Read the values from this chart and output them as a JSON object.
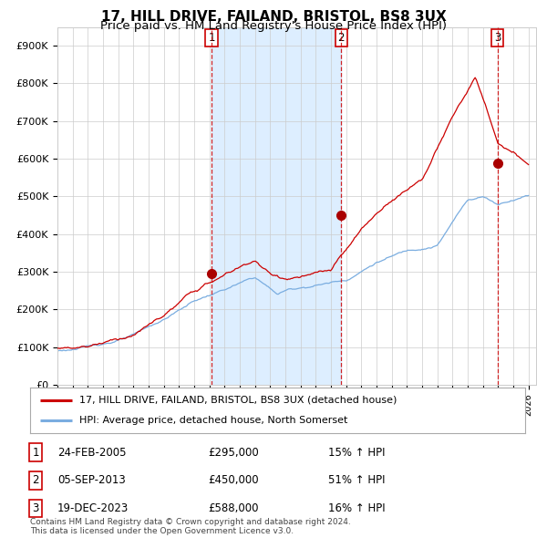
{
  "title": "17, HILL DRIVE, FAILAND, BRISTOL, BS8 3UX",
  "subtitle": "Price paid vs. HM Land Registry's House Price Index (HPI)",
  "ylabel_ticks": [
    "£0",
    "£100K",
    "£200K",
    "£300K",
    "£400K",
    "£500K",
    "£600K",
    "£700K",
    "£800K",
    "£900K"
  ],
  "ytick_values": [
    0,
    100000,
    200000,
    300000,
    400000,
    500000,
    600000,
    700000,
    800000,
    900000
  ],
  "ylim": [
    0,
    950000
  ],
  "xlim_start": 1995.0,
  "xlim_end": 2026.5,
  "sale_dates_num": [
    2005.14,
    2013.68,
    2023.96
  ],
  "sale_prices": [
    295000,
    450000,
    588000
  ],
  "sale_labels": [
    "1",
    "2",
    "3"
  ],
  "vline_color": "#cc0000",
  "sale_dot_color": "#aa0000",
  "hpi_line_color": "#7aade0",
  "price_line_color": "#cc0000",
  "shade_color": "#ddeeff",
  "background_color": "#ffffff",
  "grid_color": "#cccccc",
  "legend_entries": [
    "17, HILL DRIVE, FAILAND, BRISTOL, BS8 3UX (detached house)",
    "HPI: Average price, detached house, North Somerset"
  ],
  "table_rows": [
    [
      "1",
      "24-FEB-2005",
      "£295,000",
      "15% ↑ HPI"
    ],
    [
      "2",
      "05-SEP-2013",
      "£450,000",
      "51% ↑ HPI"
    ],
    [
      "3",
      "19-DEC-2023",
      "£588,000",
      "16% ↑ HPI"
    ]
  ],
  "footnote": "Contains HM Land Registry data © Crown copyright and database right 2024.\nThis data is licensed under the Open Government Licence v3.0.",
  "title_fontsize": 11,
  "subtitle_fontsize": 9.5,
  "tick_fontsize": 8,
  "label_color": "#cc0000"
}
